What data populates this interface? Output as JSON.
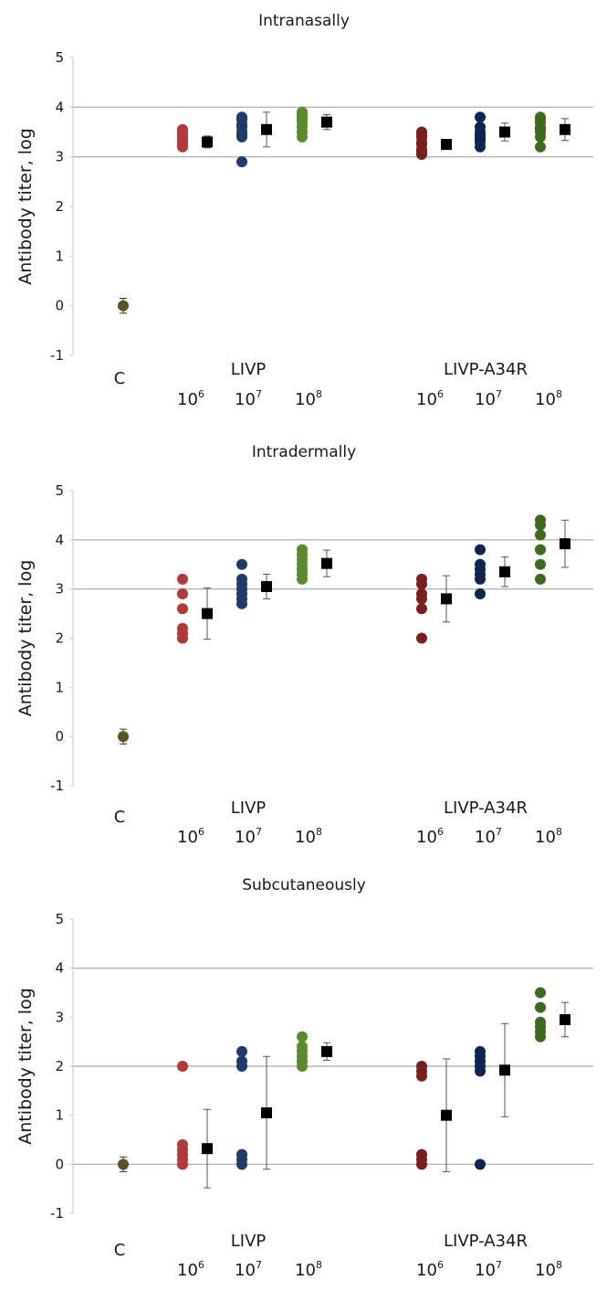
{
  "chart_data": [
    {
      "type": "scatter",
      "title": "Intranasally",
      "ylabel": "Antibody titer, log",
      "ylim": [
        -1,
        5
      ],
      "yticks": [
        -1,
        0,
        1,
        2,
        3,
        4,
        5
      ],
      "gridlines": [
        3,
        4
      ],
      "control_label": "C",
      "group_labels": [
        "LIVP",
        "LIVP-A34R"
      ],
      "dose_base": "10",
      "dose_exponents": [
        "6",
        "7",
        "8"
      ],
      "series": [
        {
          "group": "C",
          "dose": "",
          "color": "#5a5421",
          "points": [
            0
          ],
          "mean": 0,
          "error": 0.15
        },
        {
          "group": "LIVP",
          "dose": "6",
          "color": "#b03a3a",
          "points": [
            3.55,
            3.5,
            3.45,
            3.4,
            3.35,
            3.3,
            3.25,
            3.2
          ],
          "mean": 3.3,
          "error": 0.12
        },
        {
          "group": "LIVP",
          "dose": "7",
          "color": "#1f3a6b",
          "points": [
            3.8,
            3.75,
            3.65,
            3.6,
            3.5,
            3.45,
            3.4,
            2.9
          ],
          "mean": 3.55,
          "error": 0.35
        },
        {
          "group": "LIVP",
          "dose": "8",
          "color": "#5a8a2a",
          "points": [
            3.9,
            3.85,
            3.8,
            3.75,
            3.7,
            3.6,
            3.5,
            3.4
          ],
          "mean": 3.7,
          "error": 0.15
        },
        {
          "group": "LIVP-A34R",
          "dose": "6",
          "color": "#7a1e1e",
          "points": [
            3.5,
            3.45,
            3.4,
            3.3,
            3.25,
            3.15,
            3.1,
            3.05
          ],
          "mean": 3.25,
          "error": 0.1
        },
        {
          "group": "LIVP-A34R",
          "dose": "7",
          "color": "#0f2550",
          "points": [
            3.8,
            3.6,
            3.5,
            3.45,
            3.4,
            3.35,
            3.3,
            3.2
          ],
          "mean": 3.5,
          "error": 0.18
        },
        {
          "group": "LIVP-A34R",
          "dose": "8",
          "color": "#3f6a1e",
          "points": [
            3.8,
            3.75,
            3.7,
            3.6,
            3.55,
            3.5,
            3.4,
            3.2
          ],
          "mean": 3.55,
          "error": 0.22
        }
      ]
    },
    {
      "type": "scatter",
      "title": "Intradermally",
      "ylabel": "Antibody titer, log",
      "ylim": [
        -1,
        5
      ],
      "yticks": [
        -1,
        0,
        1,
        2,
        3,
        4,
        5
      ],
      "gridlines": [
        3,
        4
      ],
      "control_label": "C",
      "group_labels": [
        "LIVP",
        "LIVP-A34R"
      ],
      "dose_base": "10",
      "dose_exponents": [
        "6",
        "7",
        "8"
      ],
      "series": [
        {
          "group": "C",
          "dose": "",
          "color": "#5a5421",
          "points": [
            0
          ],
          "mean": 0,
          "error": 0.15
        },
        {
          "group": "LIVP",
          "dose": "6",
          "color": "#b03a3a",
          "points": [
            3.2,
            2.9,
            2.6,
            2.2,
            2.1,
            2.0
          ],
          "mean": 2.5,
          "error": 0.52
        },
        {
          "group": "LIVP",
          "dose": "7",
          "color": "#1f3a6b",
          "points": [
            3.5,
            3.2,
            3.1,
            3.0,
            2.9,
            2.8,
            2.7
          ],
          "mean": 3.05,
          "error": 0.25
        },
        {
          "group": "LIVP",
          "dose": "8",
          "color": "#5a8a2a",
          "points": [
            3.8,
            3.7,
            3.6,
            3.5,
            3.4,
            3.3,
            3.2
          ],
          "mean": 3.52,
          "error": 0.27
        },
        {
          "group": "LIVP-A34R",
          "dose": "6",
          "color": "#7a1e1e",
          "points": [
            3.2,
            3.1,
            2.9,
            2.8,
            2.6,
            2.0
          ],
          "mean": 2.8,
          "error": 0.47
        },
        {
          "group": "LIVP-A34R",
          "dose": "7",
          "color": "#0f2550",
          "points": [
            3.8,
            3.5,
            3.4,
            3.3,
            3.2,
            2.9
          ],
          "mean": 3.35,
          "error": 0.3
        },
        {
          "group": "LIVP-A34R",
          "dose": "8",
          "color": "#3f6a1e",
          "points": [
            4.4,
            4.3,
            4.1,
            3.8,
            3.5,
            3.2
          ],
          "mean": 3.92,
          "error": 0.48
        }
      ]
    },
    {
      "type": "scatter",
      "title": "Subcutaneously",
      "ylabel": "Antibody titer, log",
      "ylim": [
        -1,
        5
      ],
      "yticks": [
        -1,
        0,
        1,
        2,
        3,
        4,
        5
      ],
      "gridlines": [
        0,
        2,
        4
      ],
      "control_label": "C",
      "group_labels": [
        "LIVP",
        "LIVP-A34R"
      ],
      "dose_base": "10",
      "dose_exponents": [
        "6",
        "7",
        "8"
      ],
      "series": [
        {
          "group": "C",
          "dose": "",
          "color": "#5a5421",
          "points": [
            0
          ],
          "mean": 0,
          "error": 0.15
        },
        {
          "group": "LIVP",
          "dose": "6",
          "color": "#b03a3a",
          "points": [
            2.0,
            0.4,
            0.3,
            0.2,
            0.1,
            0.0
          ],
          "mean": 0.32,
          "error": 0.8
        },
        {
          "group": "LIVP",
          "dose": "7",
          "color": "#1f3a6b",
          "points": [
            2.3,
            2.1,
            2.0,
            0.2,
            0.1,
            0.0
          ],
          "mean": 1.05,
          "error": 1.15
        },
        {
          "group": "LIVP",
          "dose": "8",
          "color": "#5a8a2a",
          "points": [
            2.6,
            2.4,
            2.3,
            2.2,
            2.1,
            2.0
          ],
          "mean": 2.3,
          "error": 0.18
        },
        {
          "group": "LIVP-A34R",
          "dose": "6",
          "color": "#7a1e1e",
          "points": [
            2.0,
            1.9,
            1.8,
            0.2,
            0.1,
            0.0
          ],
          "mean": 1.0,
          "error": 1.15
        },
        {
          "group": "LIVP-A34R",
          "dose": "7",
          "color": "#0f2550",
          "points": [
            2.3,
            2.2,
            2.1,
            2.0,
            1.9,
            0.0
          ],
          "mean": 1.92,
          "error": 0.95
        },
        {
          "group": "LIVP-A34R",
          "dose": "8",
          "color": "#3f6a1e",
          "points": [
            3.5,
            3.2,
            2.9,
            2.8,
            2.7,
            2.6
          ],
          "mean": 2.95,
          "error": 0.35
        }
      ]
    }
  ]
}
